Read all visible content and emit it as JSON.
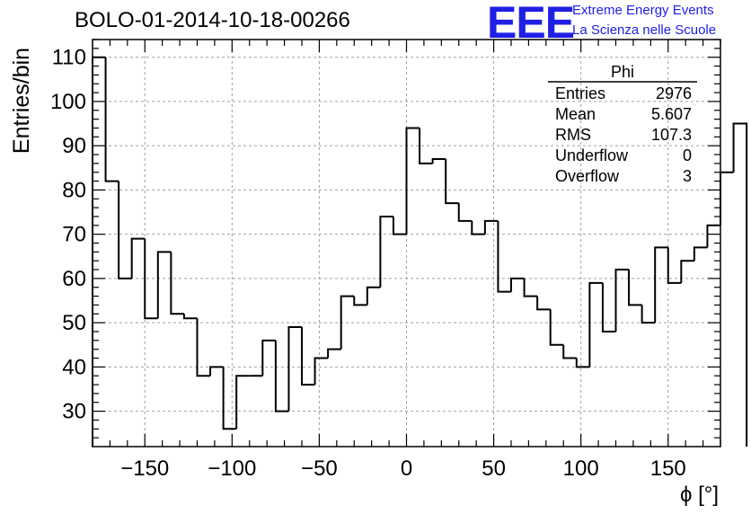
{
  "title": "BOLO-01-2014-10-18-00266",
  "logo": {
    "mark": "EEE",
    "line1": "Extreme Energy Events",
    "line2": "La Scienza nelle Scuole"
  },
  "stats_box": {
    "name": "Phi",
    "rows": [
      {
        "label": "Entries",
        "value": "2976"
      },
      {
        "label": "Mean",
        "value": "5.607"
      },
      {
        "label": "RMS",
        "value": "107.3"
      },
      {
        "label": "Underflow",
        "value": "0"
      },
      {
        "label": "Overflow",
        "value": "3"
      }
    ]
  },
  "colors": {
    "line": "#000000",
    "grid": "#a0a0a0",
    "logo": "#1f1fe6"
  },
  "chart_data": {
    "type": "histogram",
    "title": "BOLO-01-2014-10-18-00266",
    "xlabel": "ϕ [°]",
    "ylabel": "Entries/bin",
    "xlim": [
      -180,
      180
    ],
    "ylim": [
      22,
      114
    ],
    "grid": true,
    "bin_width": 7.5,
    "bin_edges_start": -180,
    "counts": [
      110,
      82,
      60,
      69,
      51,
      66,
      52,
      51,
      38,
      40,
      26,
      38,
      38,
      46,
      30,
      49,
      36,
      42,
      44,
      56,
      54,
      58,
      74,
      70,
      94,
      86,
      87,
      77,
      73,
      70,
      73,
      57,
      60,
      56,
      53,
      45,
      42,
      40,
      59,
      48,
      62,
      54,
      50,
      67,
      59,
      64,
      67,
      72,
      84,
      95
    ],
    "x_ticks": [
      "−150",
      "−100",
      "−50",
      "0",
      "50",
      "100",
      "150"
    ],
    "x_tick_values": [
      -150,
      -100,
      -50,
      0,
      50,
      100,
      150
    ],
    "y_ticks": [
      "30",
      "40",
      "50",
      "60",
      "70",
      "80",
      "90",
      "100",
      "110"
    ],
    "y_tick_values": [
      30,
      40,
      50,
      60,
      70,
      80,
      90,
      100,
      110
    ]
  }
}
